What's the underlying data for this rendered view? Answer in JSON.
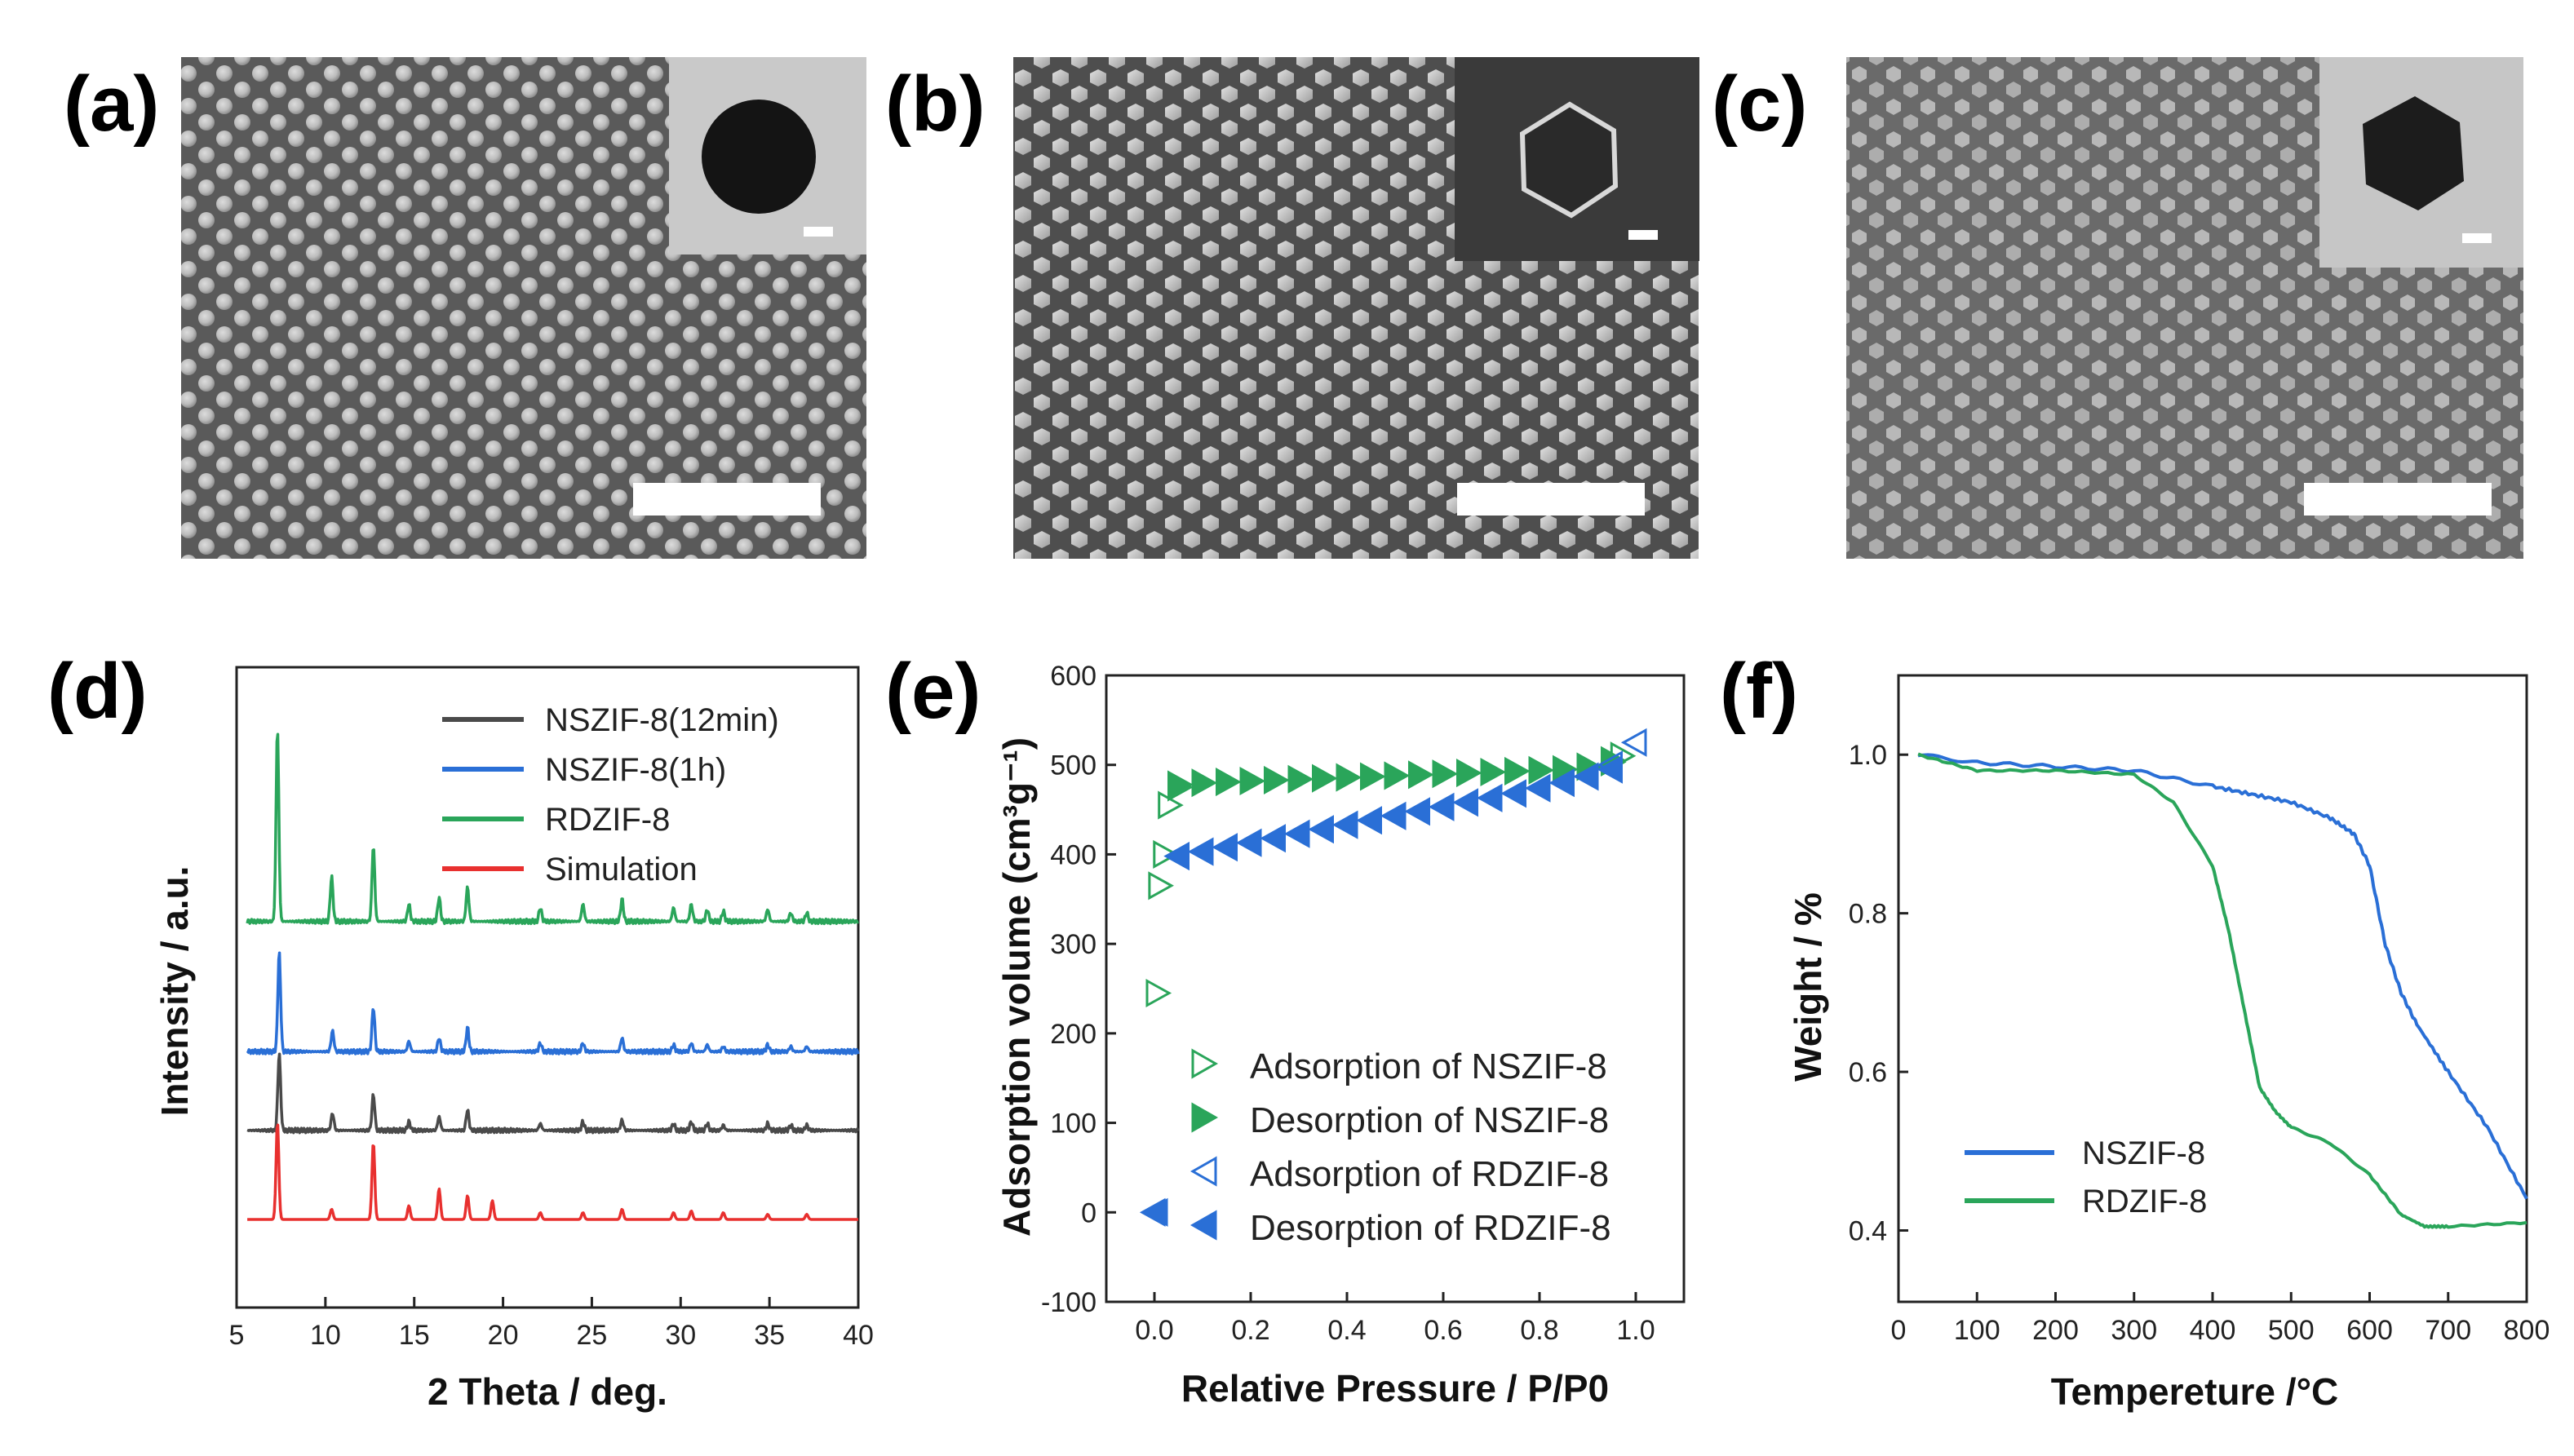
{
  "panels": {
    "a": {
      "label": "(a)"
    },
    "b": {
      "label": "(b)"
    },
    "c": {
      "label": "(c)"
    },
    "d": {
      "label": "(d)"
    },
    "e": {
      "label": "(e)"
    },
    "f": {
      "label": "(f)"
    }
  },
  "colors": {
    "nszif_12min": "#4a4a4a",
    "nszif_1h": "#2a6fd6",
    "rdzif": "#2aa55a",
    "simulation": "#e8302f",
    "tga_ns": "#2a6fd6",
    "tga_rd": "#2aa55a",
    "iso_green": "#2aa55a",
    "iso_blue": "#2a6fd6"
  },
  "chart_data": [
    {
      "id": "d",
      "type": "line",
      "title": "",
      "xlabel": "2 Theta / deg.",
      "ylabel": "Intensity / a.u.",
      "xlim": [
        5,
        40
      ],
      "xticks": [
        5,
        10,
        15,
        20,
        25,
        30,
        35,
        40
      ],
      "yticks": [],
      "legend_position": "top-right",
      "series": [
        {
          "name": "NSZIF-8(12min)",
          "offset": 0.52,
          "peaks": [
            [
              7.4,
              0.45
            ],
            [
              10.4,
              0.1
            ],
            [
              12.7,
              0.21
            ],
            [
              14.7,
              0.05
            ],
            [
              16.4,
              0.08
            ],
            [
              18.0,
              0.12
            ],
            [
              22.1,
              0.04
            ],
            [
              24.5,
              0.05
            ],
            [
              26.7,
              0.06
            ],
            [
              29.6,
              0.04
            ],
            [
              30.6,
              0.05
            ],
            [
              31.5,
              0.04
            ],
            [
              32.4,
              0.03
            ],
            [
              34.9,
              0.04
            ],
            [
              36.2,
              0.03
            ],
            [
              37.1,
              0.03
            ]
          ]
        },
        {
          "name": "NSZIF-8(1h)",
          "offset": 0.98,
          "peaks": [
            [
              7.4,
              0.58
            ],
            [
              10.4,
              0.12
            ],
            [
              12.7,
              0.26
            ],
            [
              14.7,
              0.06
            ],
            [
              16.4,
              0.08
            ],
            [
              18.0,
              0.14
            ],
            [
              22.1,
              0.05
            ],
            [
              24.5,
              0.05
            ],
            [
              26.7,
              0.08
            ],
            [
              29.6,
              0.04
            ],
            [
              30.6,
              0.05
            ],
            [
              31.5,
              0.04
            ],
            [
              32.4,
              0.03
            ],
            [
              34.9,
              0.04
            ],
            [
              36.2,
              0.03
            ],
            [
              37.1,
              0.03
            ]
          ]
        },
        {
          "name": "RDZIF-8",
          "offset": 1.74,
          "peaks": [
            [
              7.3,
              1.13
            ],
            [
              10.35,
              0.26
            ],
            [
              12.7,
              0.44
            ],
            [
              14.7,
              0.1
            ],
            [
              16.4,
              0.14
            ],
            [
              18.0,
              0.2
            ],
            [
              22.1,
              0.08
            ],
            [
              24.5,
              0.1
            ],
            [
              26.7,
              0.13
            ],
            [
              29.6,
              0.08
            ],
            [
              30.6,
              0.1
            ],
            [
              31.5,
              0.07
            ],
            [
              32.4,
              0.06
            ],
            [
              34.9,
              0.07
            ],
            [
              36.2,
              0.05
            ],
            [
              37.1,
              0.05
            ]
          ]
        },
        {
          "name": "Simulation",
          "offset": 0.0,
          "peaks": [
            [
              7.3,
              0.57
            ],
            [
              10.35,
              0.06
            ],
            [
              12.7,
              0.45
            ],
            [
              14.7,
              0.08
            ],
            [
              16.4,
              0.18
            ],
            [
              18.0,
              0.14
            ],
            [
              19.4,
              0.11
            ],
            [
              22.1,
              0.04
            ],
            [
              24.5,
              0.04
            ],
            [
              26.7,
              0.06
            ],
            [
              29.6,
              0.04
            ],
            [
              30.6,
              0.05
            ],
            [
              32.4,
              0.04
            ],
            [
              34.9,
              0.03
            ],
            [
              37.1,
              0.03
            ]
          ]
        }
      ]
    },
    {
      "id": "e",
      "type": "scatter",
      "title": "",
      "xlabel": "Relative Pressure / P/P0",
      "ylabel": "Adsorption volume (cm³g⁻¹)",
      "xlim": [
        -0.1,
        1.1
      ],
      "ylim": [
        -100,
        600
      ],
      "xticks": [
        0.0,
        0.2,
        0.4,
        0.6,
        0.8,
        1.0
      ],
      "yticks": [
        -100,
        0,
        100,
        200,
        300,
        400,
        500,
        600
      ],
      "legend_position": "bottom-right",
      "series": [
        {
          "name": "Adsorption of NSZIF-8",
          "marker": "tri-right-open",
          "x": [
            0.005,
            0.01,
            0.02,
            0.03,
            0.05,
            0.95,
            0.97
          ],
          "y": [
            245,
            365,
            400,
            455,
            475,
            505,
            510
          ]
        },
        {
          "name": "Desorption of NSZIF-8",
          "marker": "tri-right-filled",
          "x": [
            0.05,
            0.1,
            0.15,
            0.2,
            0.25,
            0.3,
            0.35,
            0.4,
            0.45,
            0.5,
            0.55,
            0.6,
            0.65,
            0.7,
            0.75,
            0.8,
            0.85,
            0.9,
            0.95
          ],
          "y": [
            478,
            480,
            481,
            482,
            483,
            484,
            485,
            486,
            487,
            488,
            489,
            490,
            491,
            492,
            493,
            494,
            495,
            498,
            503
          ]
        },
        {
          "name": "Adsorption of RDZIF-8",
          "marker": "tri-left-open",
          "x": [
            0.005,
            0.05,
            0.95,
            1.0
          ],
          "y": [
            0,
            398,
            500,
            525
          ]
        },
        {
          "name": "Desorption of RDZIF-8",
          "marker": "tri-left-filled",
          "x": [
            0.0,
            0.05,
            0.1,
            0.15,
            0.2,
            0.25,
            0.3,
            0.35,
            0.4,
            0.45,
            0.5,
            0.55,
            0.6,
            0.65,
            0.7,
            0.75,
            0.8,
            0.85,
            0.9,
            0.95
          ],
          "y": [
            0,
            398,
            403,
            408,
            413,
            418,
            423,
            428,
            433,
            438,
            443,
            448,
            453,
            458,
            463,
            468,
            474,
            480,
            487,
            495
          ]
        }
      ]
    },
    {
      "id": "f",
      "type": "line",
      "title": "",
      "xlabel": "Tempereture /°C",
      "ylabel": "Weight / %",
      "xlim": [
        0,
        800
      ],
      "ylim": [
        0.31,
        1.1
      ],
      "xticks": [
        0,
        100,
        200,
        300,
        400,
        500,
        600,
        700,
        800
      ],
      "yticks": [
        0.4,
        0.6,
        0.8,
        1.0
      ],
      "ytick_labels": [
        "0.4",
        "0.6",
        "0.8",
        "1.0"
      ],
      "legend_position": "bottom-left",
      "series": [
        {
          "name": "NSZIF-8",
          "x": [
            25,
            100,
            200,
            300,
            400,
            450,
            500,
            550,
            580,
            600,
            620,
            640,
            660,
            700,
            750,
            800
          ],
          "y": [
            1.0,
            0.99,
            0.985,
            0.98,
            0.96,
            0.95,
            0.94,
            0.92,
            0.9,
            0.86,
            0.76,
            0.7,
            0.66,
            0.6,
            0.53,
            0.44
          ]
        },
        {
          "name": "RDZIF-8",
          "x": [
            25,
            100,
            200,
            300,
            350,
            400,
            420,
            440,
            460,
            480,
            500,
            550,
            600,
            640,
            670,
            700,
            800
          ],
          "y": [
            1.0,
            0.98,
            0.98,
            0.975,
            0.94,
            0.86,
            0.78,
            0.68,
            0.58,
            0.55,
            0.53,
            0.51,
            0.47,
            0.42,
            0.405,
            0.405,
            0.41
          ]
        }
      ]
    }
  ]
}
